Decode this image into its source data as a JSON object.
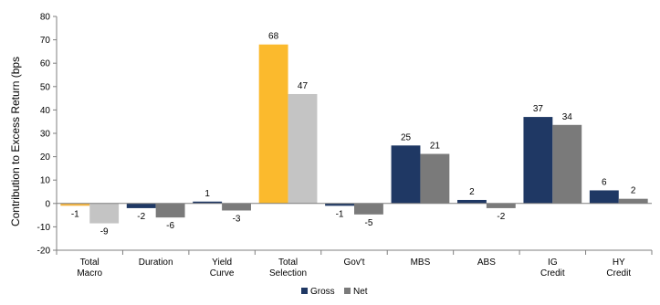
{
  "chart_data": {
    "type": "bar",
    "title": "",
    "xlabel": "",
    "ylabel": "Contribution to Excess Return (bps",
    "ylim": [
      -20,
      80
    ],
    "yticks": [
      -20,
      -10,
      0,
      10,
      20,
      30,
      40,
      50,
      60,
      70,
      80
    ],
    "categories": [
      [
        "Total",
        "Macro"
      ],
      [
        "Duration"
      ],
      [
        "Yield",
        "Curve"
      ],
      [
        "Total",
        "Selection"
      ],
      [
        "Gov't"
      ],
      [
        "MBS"
      ],
      [
        "ABS"
      ],
      [
        "IG",
        "Credit"
      ],
      [
        "HY",
        "Credit"
      ]
    ],
    "series": [
      {
        "name": "Gross",
        "values": [
          -1,
          -2,
          1,
          68,
          -1,
          25,
          2,
          37,
          6
        ]
      },
      {
        "name": "Net",
        "values": [
          -9,
          -6,
          -3,
          47,
          -5,
          21,
          -2,
          34,
          2
        ]
      }
    ],
    "precise_values": {
      "gross": [
        -1,
        -2,
        0.8,
        68,
        -1,
        24.8,
        1.5,
        37,
        5.6
      ],
      "net": [
        -8.5,
        -6,
        -3,
        46.8,
        -4.7,
        21.2,
        -2,
        33.6,
        2
      ]
    },
    "colors": {
      "gross": "#1f3864",
      "net": "#7a7a7a",
      "gross_highlight": "#fbba2d",
      "net_highlight": "#c4c4c4",
      "gross_macro": "#f5b53f",
      "net_macro": "#c4c4c4"
    },
    "highlight": {
      "Total Macro": {
        "gross": "#f5b53f",
        "net": "#c4c4c4"
      },
      "Total Selection": {
        "gross": "#fbba2d",
        "net": "#c4c4c4"
      }
    },
    "legend": {
      "position": "bottom-center"
    },
    "grid": false
  }
}
